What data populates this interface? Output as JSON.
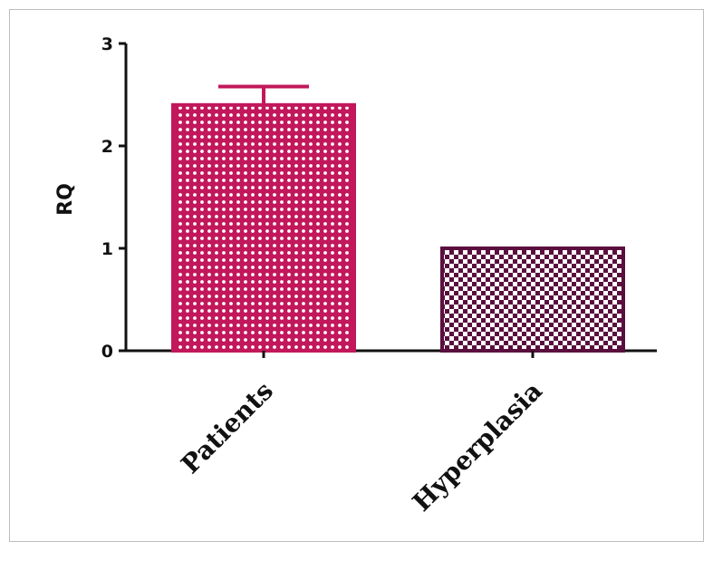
{
  "chart_data": {
    "type": "bar",
    "title": "",
    "xlabel": "",
    "ylabel": "RQ",
    "categories": [
      "Patients",
      "Hyperplasia"
    ],
    "values": [
      2.4,
      1.0
    ],
    "error_upper": [
      2.58,
      null
    ],
    "ylim": [
      0,
      3
    ],
    "yticks": [
      "0",
      "1",
      "2",
      "3"
    ],
    "grid": false,
    "legend": "none",
    "colors": {
      "Patients": "#c2185b",
      "Hyperplasia": "#5a0f3e",
      "axis": "#111111"
    }
  }
}
